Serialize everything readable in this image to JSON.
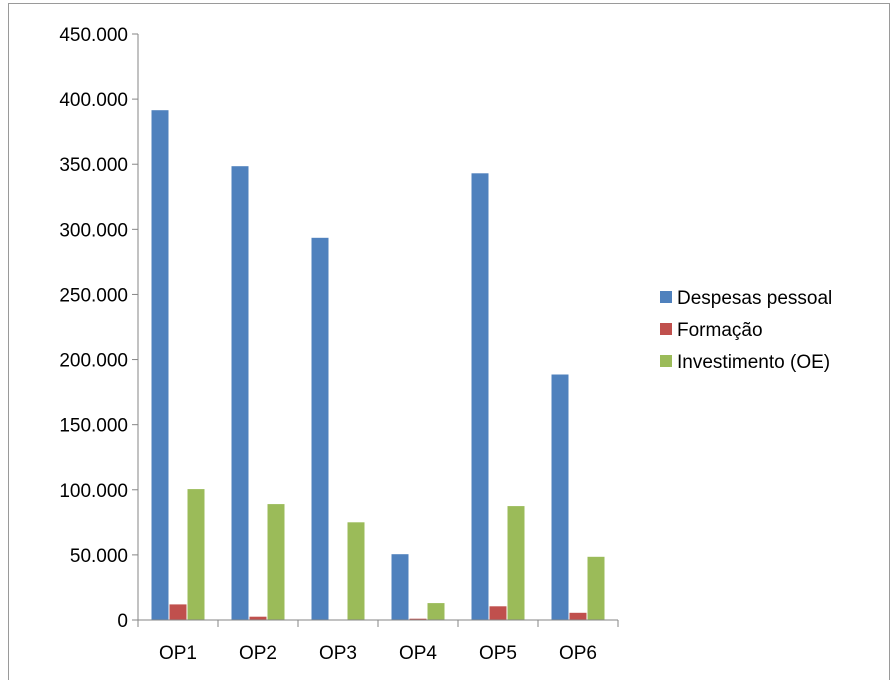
{
  "chart_data": {
    "type": "bar",
    "title": "",
    "xlabel": "",
    "ylabel": "",
    "categories": [
      "OP1",
      "OP2",
      "OP3",
      "OP4",
      "OP5",
      "OP6"
    ],
    "series": [
      {
        "name": "Despesas pessoal",
        "color": "#4f81bd",
        "values": [
          391500,
          348500,
          293500,
          50500,
          343000,
          188500
        ]
      },
      {
        "name": "Formação",
        "color": "#c0504d",
        "values": [
          12000,
          2500,
          0,
          1000,
          10500,
          5500
        ]
      },
      {
        "name": "Investimento (OE)",
        "color": "#9bbb59",
        "values": [
          100500,
          89000,
          75000,
          13000,
          87500,
          48500
        ]
      }
    ],
    "ylim": [
      0,
      450000
    ],
    "yticks": [
      0,
      50000,
      100000,
      150000,
      200000,
      250000,
      300000,
      350000,
      400000,
      450000
    ],
    "ytick_labels": [
      "0",
      "50.000",
      "100.000",
      "150.000",
      "200.000",
      "250.000",
      "300.000",
      "350.000",
      "400.000",
      "450.000"
    ],
    "grid": false,
    "legend_position": "right"
  }
}
